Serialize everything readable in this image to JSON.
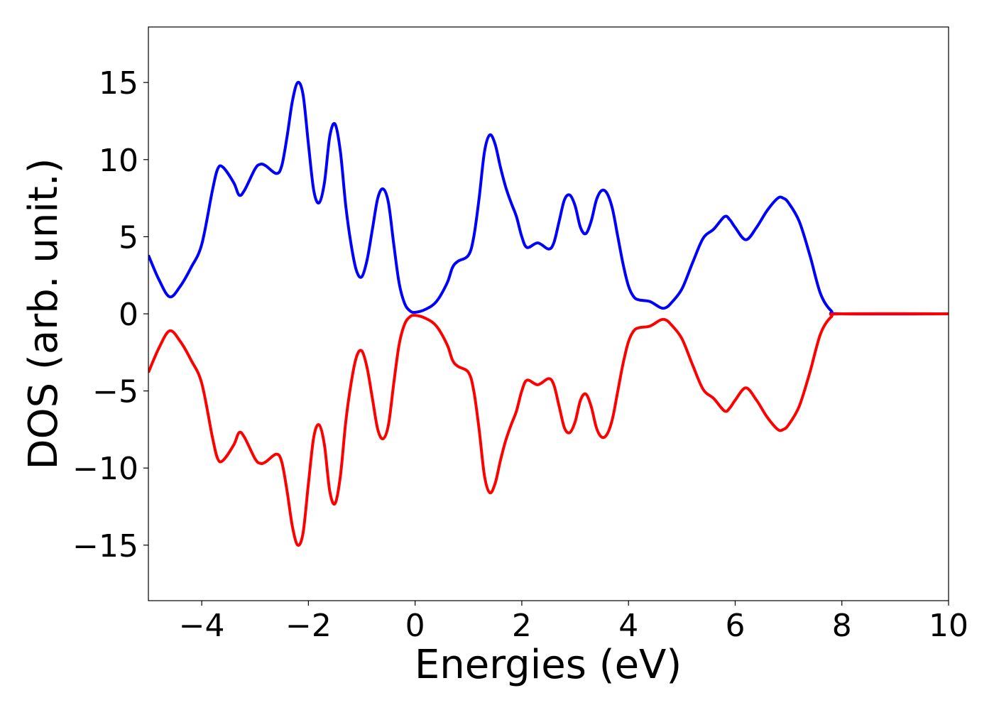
{
  "chart_data": {
    "type": "line",
    "x_label": "Energies (eV)",
    "y_label": "DOS (arb. unit.)",
    "xlim": [
      -5,
      10
    ],
    "ylim": [
      -18.6,
      18.6
    ],
    "xticks": [
      {
        "value": -4,
        "label": "−4"
      },
      {
        "value": -2,
        "label": "−2"
      },
      0,
      2,
      4,
      6,
      8,
      10
    ],
    "yticks": [
      {
        "value": -15,
        "label": "−15"
      },
      {
        "value": -10,
        "label": "−10"
      },
      {
        "value": -5,
        "label": "−5"
      },
      0,
      5,
      10,
      15
    ],
    "x": [
      -5,
      -4.8,
      -4.6,
      -4.4,
      -4.2,
      -4.0,
      -3.8,
      -3.7,
      -3.6,
      -3.4,
      -3.3,
      -3.2,
      -3.0,
      -2.9,
      -2.8,
      -2.6,
      -2.5,
      -2.4,
      -2.3,
      -2.2,
      -2.1,
      -2.0,
      -1.9,
      -1.8,
      -1.7,
      -1.6,
      -1.5,
      -1.4,
      -1.3,
      -1.2,
      -1.1,
      -1.0,
      -0.9,
      -0.8,
      -0.7,
      -0.6,
      -0.5,
      -0.4,
      -0.3,
      -0.2,
      -0.1,
      0,
      0.2,
      0.4,
      0.6,
      0.7,
      0.8,
      1.0,
      1.1,
      1.2,
      1.3,
      1.4,
      1.5,
      1.6,
      1.7,
      1.8,
      1.9,
      2.0,
      2.1,
      2.3,
      2.5,
      2.6,
      2.7,
      2.8,
      2.9,
      3.0,
      3.1,
      3.2,
      3.3,
      3.4,
      3.5,
      3.6,
      3.7,
      3.8,
      3.9,
      4.0,
      4.1,
      4.2,
      4.4,
      4.6,
      4.7,
      4.8,
      5.0,
      5.2,
      5.4,
      5.6,
      5.8,
      5.9,
      6.0,
      6.2,
      6.4,
      6.6,
      6.8,
      6.9,
      7.0,
      7.2,
      7.4,
      7.6,
      7.8,
      8.0,
      10
    ],
    "series": [
      {
        "color": "#0000ff",
        "values": [
          3.8,
          2.2,
          1.1,
          1.8,
          3.0,
          4.5,
          8.0,
          9.4,
          9.5,
          8.5,
          7.7,
          8.0,
          9.4,
          9.7,
          9.6,
          9.1,
          9.6,
          11.5,
          13.8,
          15.0,
          14.2,
          11.0,
          8.0,
          7.2,
          8.5,
          11.5,
          12.3,
          10.5,
          7.0,
          4.5,
          2.8,
          2.4,
          3.5,
          5.5,
          7.5,
          8.1,
          7.2,
          4.5,
          2.0,
          0.7,
          0.2,
          0.1,
          0.3,
          0.8,
          2.0,
          3.0,
          3.4,
          3.8,
          5.0,
          7.5,
          10.5,
          11.6,
          11.0,
          9.5,
          8.2,
          7.2,
          6.3,
          5.0,
          4.3,
          4.6,
          4.2,
          4.6,
          6.0,
          7.4,
          7.7,
          7.0,
          5.6,
          5.2,
          6.0,
          7.4,
          8.0,
          7.8,
          6.8,
          5.0,
          3.2,
          1.8,
          1.1,
          0.9,
          0.8,
          0.4,
          0.4,
          0.7,
          1.6,
          3.3,
          4.9,
          5.5,
          6.3,
          6.1,
          5.6,
          4.8,
          5.6,
          6.7,
          7.5,
          7.5,
          7.2,
          6.0,
          3.8,
          1.3,
          0.2,
          0,
          0
        ]
      },
      {
        "color": "#ff0000",
        "values": [
          -3.8,
          -2.2,
          -1.1,
          -1.8,
          -3.0,
          -4.5,
          -8.0,
          -9.4,
          -9.5,
          -8.5,
          -7.7,
          -8.0,
          -9.4,
          -9.7,
          -9.6,
          -9.1,
          -9.6,
          -11.5,
          -13.8,
          -15.0,
          -14.2,
          -11.0,
          -8.0,
          -7.2,
          -8.5,
          -11.5,
          -12.3,
          -10.5,
          -7.0,
          -4.5,
          -2.8,
          -2.4,
          -3.5,
          -5.5,
          -7.5,
          -8.1,
          -7.2,
          -4.5,
          -2.0,
          -0.7,
          -0.2,
          -0.1,
          -0.3,
          -0.8,
          -2.0,
          -3.0,
          -3.4,
          -3.8,
          -5.0,
          -7.5,
          -10.5,
          -11.6,
          -11.0,
          -9.5,
          -8.2,
          -7.2,
          -6.3,
          -5.0,
          -4.3,
          -4.6,
          -4.2,
          -4.6,
          -6.0,
          -7.4,
          -7.7,
          -7.0,
          -5.6,
          -5.2,
          -6.0,
          -7.4,
          -8.0,
          -7.8,
          -6.8,
          -5.0,
          -3.2,
          -1.8,
          -1.1,
          -0.9,
          -0.8,
          -0.4,
          -0.4,
          -0.7,
          -1.6,
          -3.3,
          -4.9,
          -5.5,
          -6.3,
          -6.1,
          -5.6,
          -4.8,
          -5.6,
          -6.7,
          -7.5,
          -7.5,
          -7.2,
          -6.0,
          -3.8,
          -1.3,
          -0.2,
          0,
          0
        ]
      }
    ]
  }
}
